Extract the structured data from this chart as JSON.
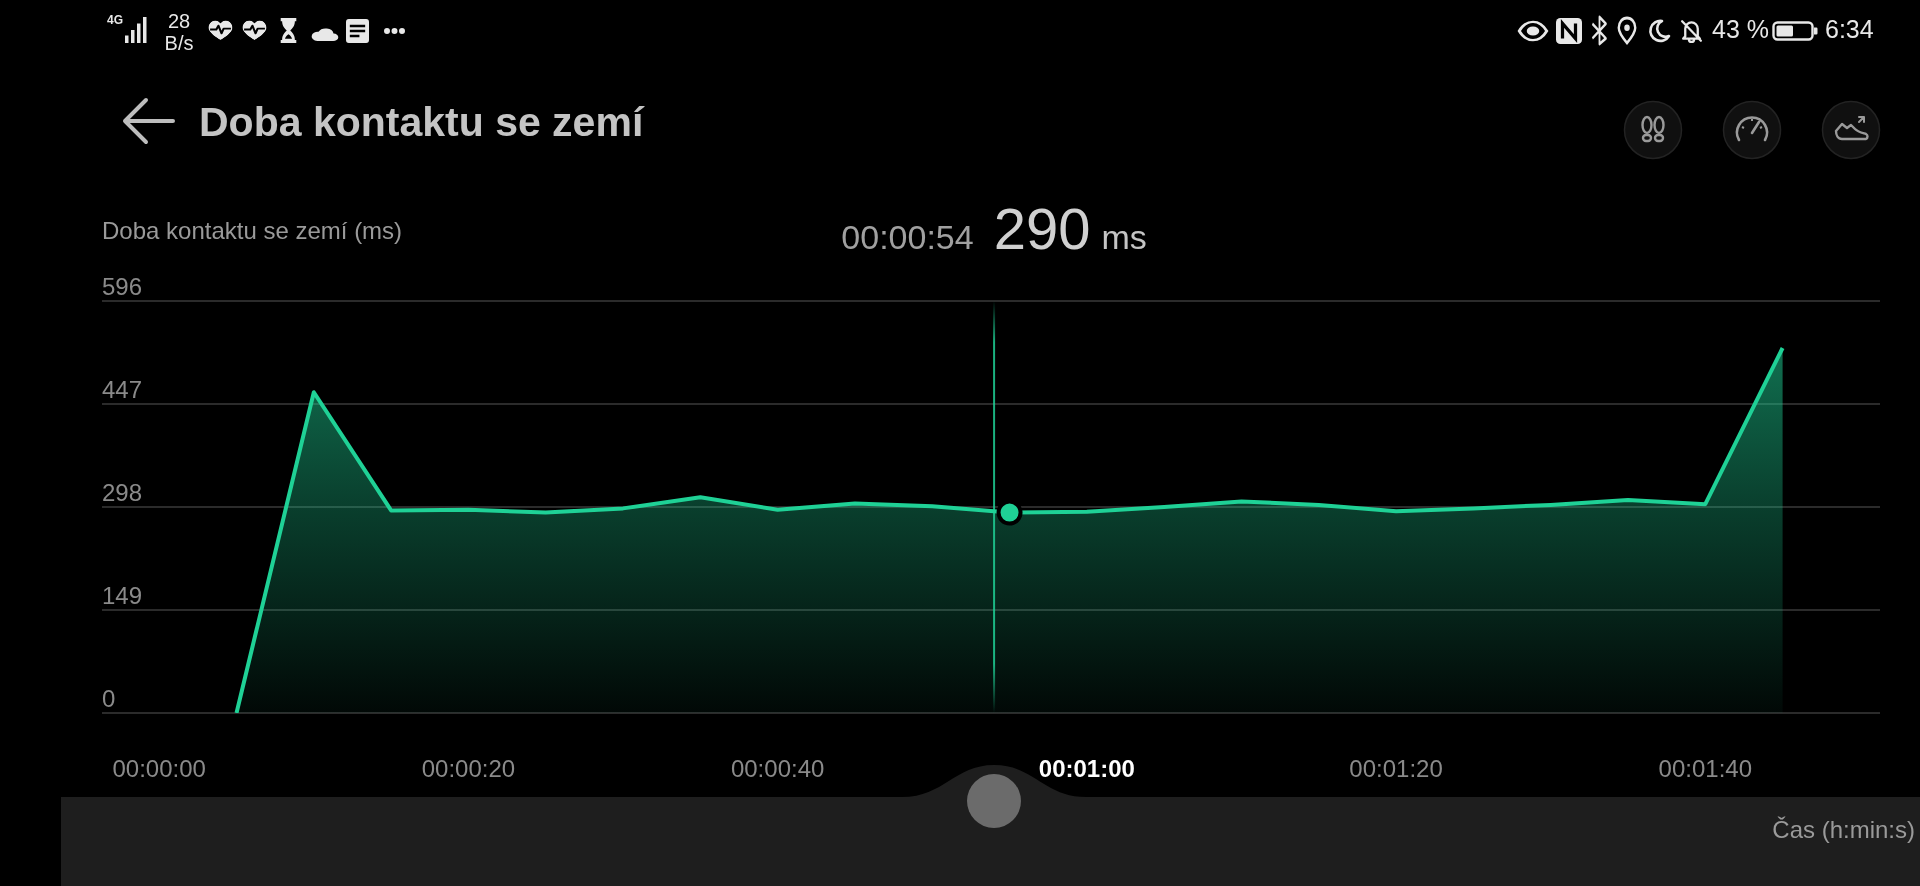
{
  "chart_data": {
    "type": "area",
    "title": "Doba kontaktu se zemí",
    "ylabel": "Doba kontaktu se zemí (ms)",
    "xlabel": "Čas (h:min:s)",
    "x": [
      5,
      10,
      15,
      20,
      25,
      30,
      35,
      40,
      45,
      50,
      55,
      60,
      65,
      70,
      75,
      80,
      85,
      90,
      95,
      100,
      105
    ],
    "series": [
      {
        "color": "#1fd196",
        "values": [
          0,
          464,
          293,
          294,
          290,
          296,
          312,
          294,
          303,
          299,
          290,
          291,
          298,
          306,
          301,
          292,
          296,
          301,
          308,
          302,
          528
        ]
      }
    ],
    "xlim": [
      -3.7,
      111.3
    ],
    "xticks": [
      {
        "value": 0,
        "label": "00:00:00"
      },
      {
        "value": 20,
        "label": "00:00:20"
      },
      {
        "value": 40,
        "label": "00:00:40"
      },
      {
        "value": 60,
        "label": "00:01:00"
      },
      {
        "value": 80,
        "label": "00:01:20"
      },
      {
        "value": 100,
        "label": "00:01:40"
      }
    ],
    "ylim": [
      0,
      596
    ],
    "yticks": [
      0,
      149,
      298,
      447,
      596
    ],
    "grid": "y",
    "ref_lines": [
      {
        "axis": "x",
        "value": 54,
        "color": "#1fd196"
      }
    ],
    "annotations": [
      "00:00:54 290 ms",
      "4G",
      "28 B/s",
      "43 %",
      "6:34"
    ]
  }
}
